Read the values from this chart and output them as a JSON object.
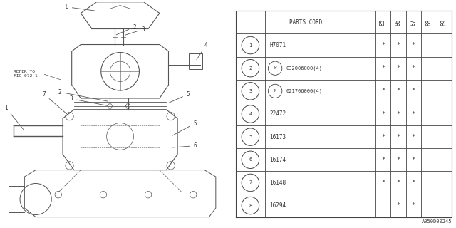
{
  "bg_color": "#ffffff",
  "rows": [
    {
      "num": "1",
      "part": "H7071",
      "marks": [
        true,
        true,
        true,
        false,
        false
      ],
      "prefix": ""
    },
    {
      "num": "2",
      "part": "032006000(4)",
      "marks": [
        true,
        true,
        true,
        false,
        false
      ],
      "prefix": "W"
    },
    {
      "num": "3",
      "part": "021706000(4)",
      "marks": [
        true,
        true,
        true,
        false,
        false
      ],
      "prefix": "N"
    },
    {
      "num": "4",
      "part": "22472",
      "marks": [
        true,
        true,
        true,
        false,
        false
      ],
      "prefix": ""
    },
    {
      "num": "5",
      "part": "16173",
      "marks": [
        true,
        true,
        true,
        false,
        false
      ],
      "prefix": ""
    },
    {
      "num": "6",
      "part": "16174",
      "marks": [
        true,
        true,
        true,
        false,
        false
      ],
      "prefix": ""
    },
    {
      "num": "7",
      "part": "16148",
      "marks": [
        true,
        true,
        true,
        false,
        false
      ],
      "prefix": ""
    },
    {
      "num": "8",
      "part": "16294",
      "marks": [
        false,
        true,
        true,
        false,
        false
      ],
      "prefix": ""
    }
  ],
  "years": [
    "85",
    "86",
    "87",
    "88",
    "89"
  ],
  "footer_code": "A050D00245",
  "line_color": "#555555",
  "text_color": "#333333",
  "table_line_color": "#444444"
}
